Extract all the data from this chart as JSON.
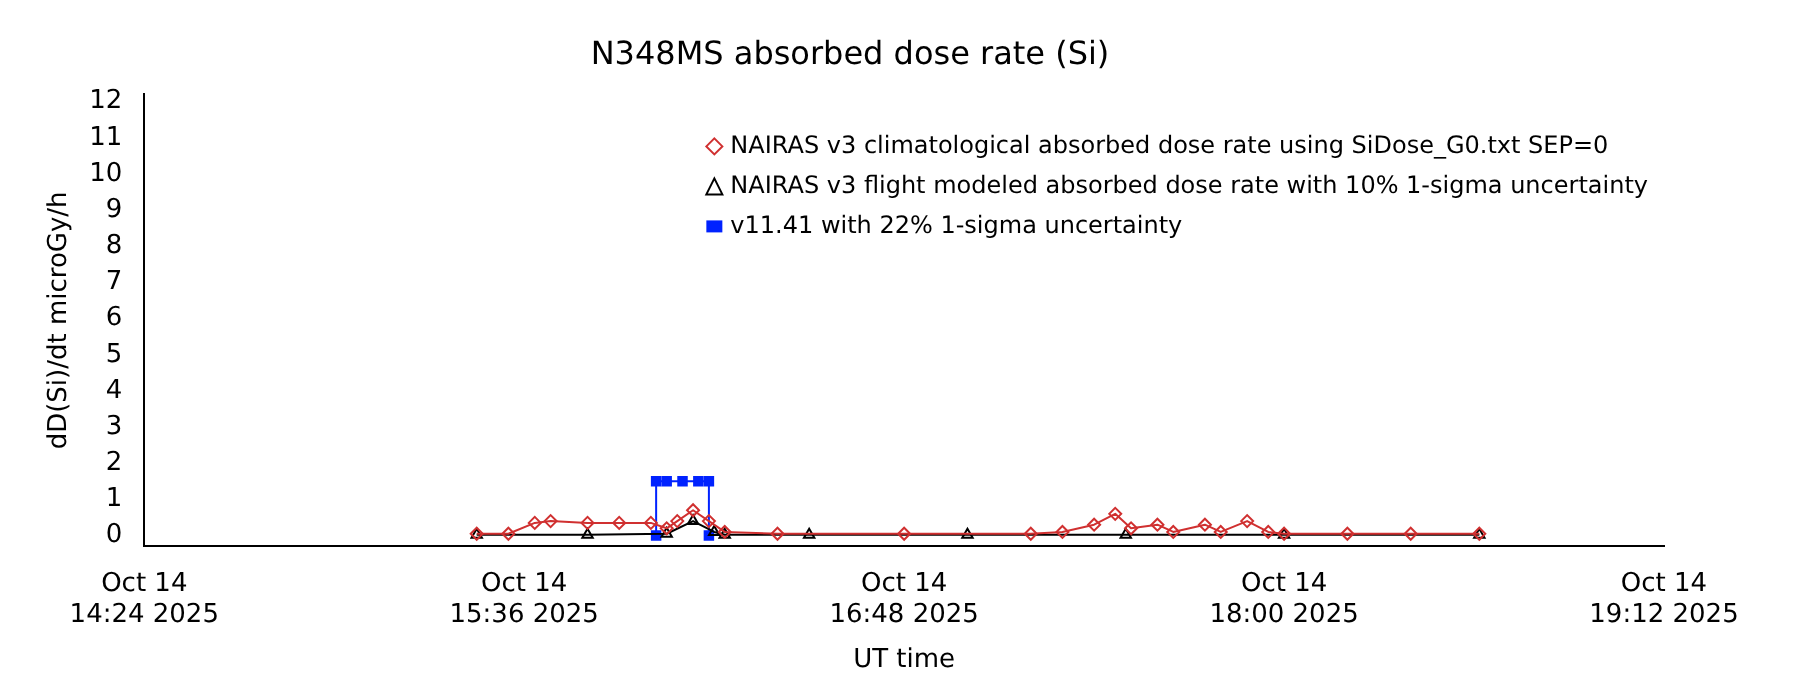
{
  "chart_data": {
    "type": "line",
    "title": "N348MS absorbed dose rate (Si)",
    "xlabel": "UT time",
    "ylabel": "dD(Si)/dt microGy/h",
    "xlim": [
      "2025-10-14T14:24",
      "2025-10-14T19:12"
    ],
    "xticks": [
      {
        "value": "2025-10-14T14:24",
        "label": "Oct 14\n14:24 2025"
      },
      {
        "value": "2025-10-14T15:36",
        "label": "Oct 14\n15:36 2025"
      },
      {
        "value": "2025-10-14T16:48",
        "label": "Oct 14\n16:48 2025"
      },
      {
        "value": "2025-10-14T18:00",
        "label": "Oct 14\n18:00 2025"
      },
      {
        "value": "2025-10-14T19:12",
        "label": "Oct 14\n19:12 2025"
      }
    ],
    "ylim": [
      -0.3,
      12.2
    ],
    "yticks": [
      0,
      1,
      2,
      3,
      4,
      5,
      6,
      7,
      8,
      9,
      10,
      11,
      12
    ],
    "legend": "top right",
    "line_style": "solid",
    "series": [
      {
        "name": "NAIRAS v3 climatological absorbed dose rate using SiDose_G0.txt SEP=0",
        "color": "#d03030",
        "marker": "diamond",
        "x": [
          "2025-10-14T15:27",
          "2025-10-14T15:33",
          "2025-10-14T15:38",
          "2025-10-14T15:41",
          "2025-10-14T15:48",
          "2025-10-14T15:54",
          "2025-10-14T16:00",
          "2025-10-14T16:03",
          "2025-10-14T16:05",
          "2025-10-14T16:08",
          "2025-10-14T16:11",
          "2025-10-14T16:14",
          "2025-10-14T16:24",
          "2025-10-14T16:48",
          "2025-10-14T17:12",
          "2025-10-14T17:18",
          "2025-10-14T17:24",
          "2025-10-14T17:28",
          "2025-10-14T17:31",
          "2025-10-14T17:36",
          "2025-10-14T17:39",
          "2025-10-14T17:45",
          "2025-10-14T17:48",
          "2025-10-14T17:53",
          "2025-10-14T17:57",
          "2025-10-14T18:00",
          "2025-10-14T18:12",
          "2025-10-14T18:24",
          "2025-10-14T18:37"
        ],
        "values": [
          0.05,
          0.05,
          0.35,
          0.4,
          0.35,
          0.35,
          0.35,
          0.2,
          0.4,
          0.7,
          0.4,
          0.1,
          0.05,
          0.05,
          0.05,
          0.1,
          0.3,
          0.6,
          0.2,
          0.3,
          0.1,
          0.3,
          0.1,
          0.4,
          0.1,
          0.05,
          0.05,
          0.05,
          0.05
        ]
      },
      {
        "name": "NAIRAS v3 flight modeled absorbed dose rate with 10% 1-sigma uncertainty",
        "color": "#000000",
        "marker": "triangle",
        "x": [
          "2025-10-14T15:27",
          "2025-10-14T15:48",
          "2025-10-14T16:03",
          "2025-10-14T16:08",
          "2025-10-14T16:12",
          "2025-10-14T16:14",
          "2025-10-14T16:30",
          "2025-10-14T17:00",
          "2025-10-14T17:30",
          "2025-10-14T18:00",
          "2025-10-14T18:37"
        ],
        "values": [
          0.02,
          0.02,
          0.05,
          0.4,
          0.1,
          0.02,
          0.02,
          0.02,
          0.02,
          0.02,
          0.02
        ]
      },
      {
        "name": "v11.41 with 22% 1-sigma uncertainty",
        "color": "#0022ff",
        "marker": "square",
        "x": [
          "2025-10-14T16:01",
          "2025-10-14T16:01",
          "2025-10-14T16:03",
          "2025-10-14T16:06",
          "2025-10-14T16:09",
          "2025-10-14T16:11",
          "2025-10-14T16:11"
        ],
        "values": [
          0,
          1.5,
          1.5,
          1.5,
          1.5,
          1.5,
          0
        ]
      }
    ]
  }
}
